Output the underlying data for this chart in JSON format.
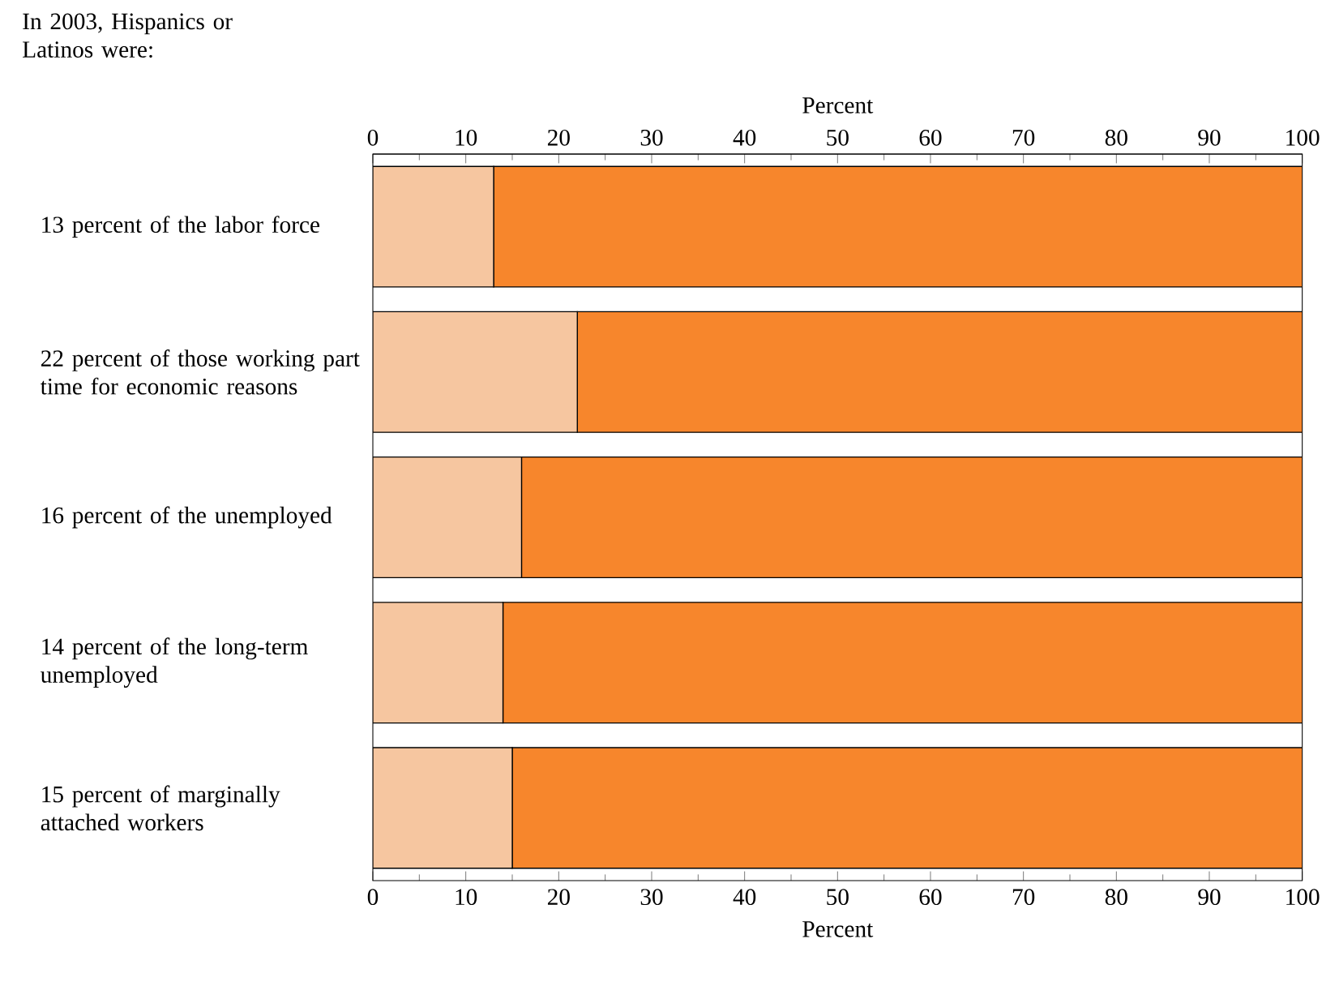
{
  "chart_data": {
    "type": "bar",
    "orientation": "horizontal",
    "stacked": true,
    "title": "In 2003, Hispanics or Latinos were:",
    "categories": [
      "13 percent of the labor force",
      "22 percent of those working part time for economic reasons",
      "16 percent of the unemployed",
      "14 percent of the long-term unemployed",
      "15 percent of marginally attached workers"
    ],
    "series": [
      {
        "color": "#f6c6a0",
        "values": [
          13,
          22,
          16,
          14,
          15
        ]
      },
      {
        "color": "#f7862c",
        "values": [
          87,
          78,
          84,
          86,
          85
        ]
      }
    ],
    "xlim": [
      0,
      100
    ],
    "xticks": [
      0,
      10,
      20,
      30,
      40,
      50,
      60,
      70,
      80,
      90,
      100
    ],
    "xlabel": "Percent",
    "x2lim": [
      0,
      100
    ],
    "x2ticks": [
      0,
      10,
      20,
      30,
      40,
      50,
      60,
      70,
      80,
      90,
      100
    ],
    "x2label": "Percent"
  }
}
